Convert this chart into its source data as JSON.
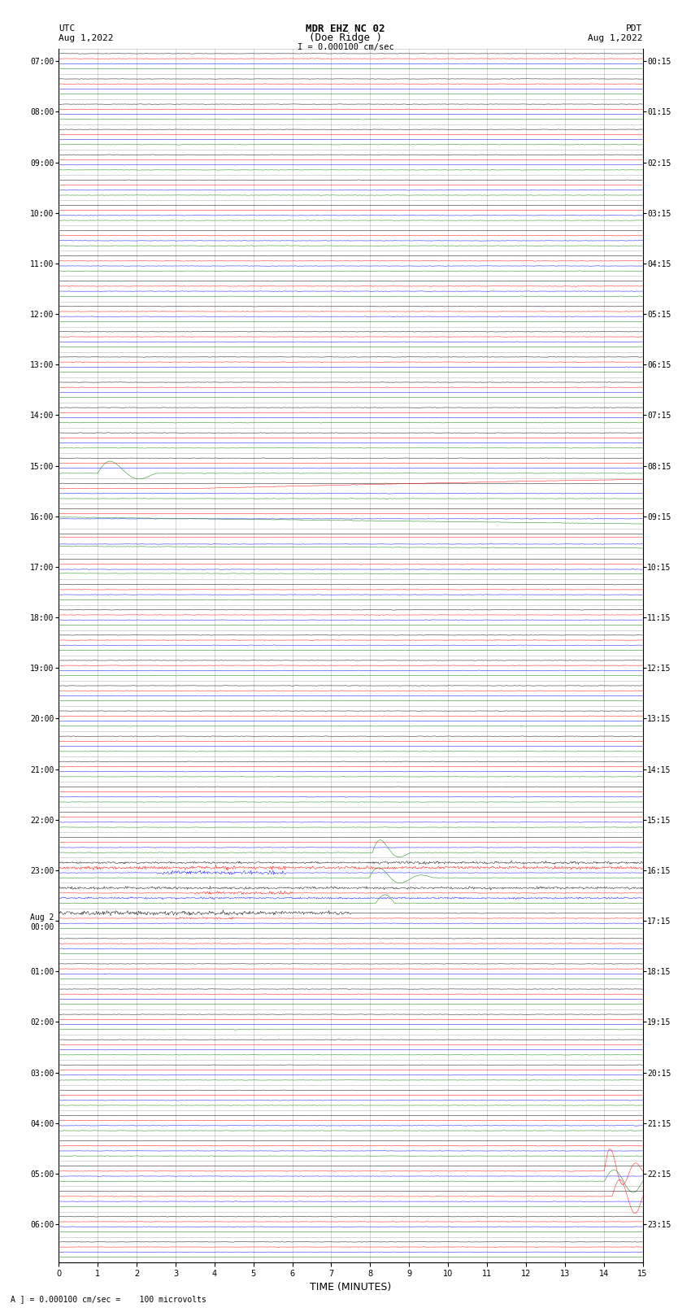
{
  "title_line1": "MDR EHZ NC 02",
  "title_line2": "(Doe Ridge )",
  "scale_label": "I = 0.000100 cm/sec",
  "left_label_top": "UTC",
  "left_label_date": "Aug 1,2022",
  "right_label_top": "PDT",
  "right_label_date": "Aug 1,2022",
  "bottom_label": "TIME (MINUTES)",
  "bottom_note": "A ] = 0.000100 cm/sec =    100 microvolts",
  "background_color": "#ffffff",
  "grid_color": "#888888",
  "line_colors_cycle": [
    "black",
    "red",
    "blue",
    "green"
  ],
  "fig_width": 8.5,
  "fig_height": 16.13,
  "dpi": 100,
  "noise_amplitude": 0.025,
  "xlabel_fontsize": 9,
  "title_fontsize": 9,
  "tick_fontsize": 7,
  "annotation_fontsize": 8,
  "x_ticks": [
    0,
    1,
    2,
    3,
    4,
    5,
    6,
    7,
    8,
    9,
    10,
    11,
    12,
    13,
    14,
    15
  ],
  "num_groups": 48,
  "traces_per_group": 4,
  "utc_labels_even": [
    "07:00",
    "08:00",
    "09:00",
    "10:00",
    "11:00",
    "12:00",
    "13:00",
    "14:00",
    "15:00",
    "16:00",
    "17:00",
    "18:00",
    "19:00",
    "20:00",
    "21:00",
    "22:00",
    "23:00",
    "Aug 2\n00:00",
    "01:00",
    "02:00",
    "03:00",
    "04:00",
    "05:00",
    "06:00"
  ],
  "pdt_labels_even": [
    "00:15",
    "01:15",
    "02:15",
    "03:15",
    "04:15",
    "05:15",
    "06:15",
    "07:15",
    "08:15",
    "09:15",
    "10:15",
    "11:15",
    "12:15",
    "13:15",
    "14:15",
    "15:15",
    "16:15",
    "17:15",
    "18:15",
    "19:15",
    "20:15",
    "21:15",
    "22:15",
    "23:15"
  ]
}
